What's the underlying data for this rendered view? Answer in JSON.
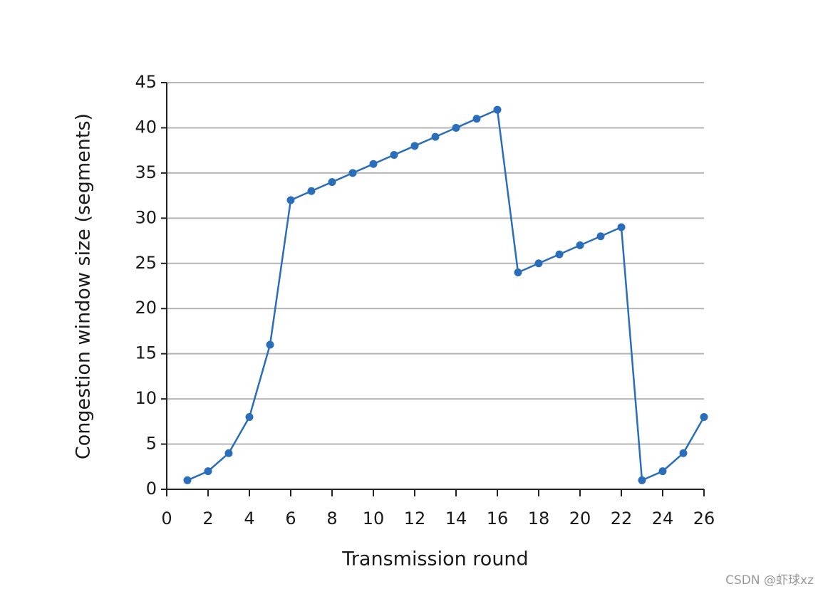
{
  "chart_data": {
    "type": "line",
    "x_label": "Transmission round",
    "y_label": "Congestion window size (segments)",
    "x": [
      1,
      2,
      3,
      4,
      5,
      6,
      7,
      8,
      9,
      10,
      11,
      12,
      13,
      14,
      15,
      16,
      17,
      18,
      19,
      20,
      21,
      22,
      23,
      24,
      25,
      26
    ],
    "series": [
      {
        "color": "#2a6ebb",
        "values": [
          1,
          2,
          4,
          8,
          16,
          32,
          33,
          34,
          35,
          36,
          37,
          38,
          39,
          40,
          41,
          42,
          24,
          25,
          26,
          27,
          28,
          29,
          1,
          2,
          4,
          8
        ]
      }
    ],
    "xlim": [
      0,
      26
    ],
    "xticks": [
      0,
      2,
      4,
      6,
      8,
      10,
      12,
      14,
      16,
      18,
      20,
      22,
      24,
      26
    ],
    "ylim": [
      0,
      45
    ],
    "yticks": [
      0,
      5,
      10,
      15,
      20,
      25,
      30,
      35,
      40,
      45
    ],
    "grid": true,
    "watermark": "CSDN @虾球xz"
  }
}
